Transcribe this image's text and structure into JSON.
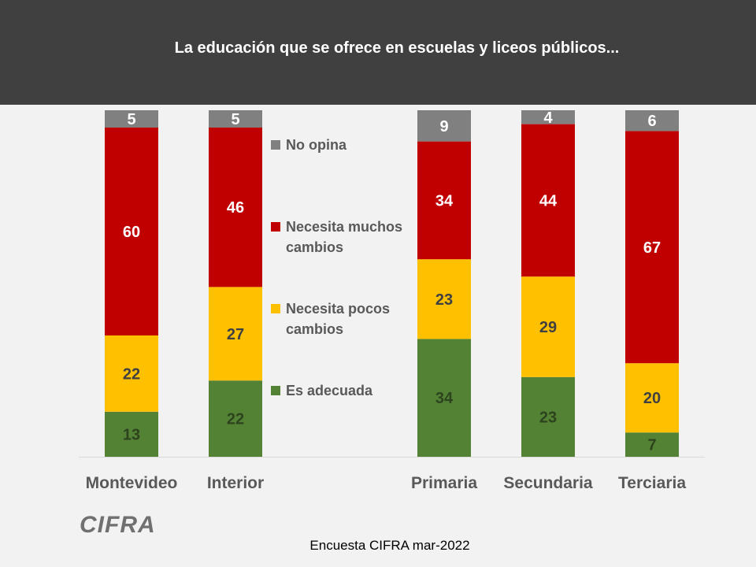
{
  "header": {
    "title": "La educación que se ofrece en escuelas y liceos públicos..."
  },
  "chart_data": {
    "type": "bar",
    "stacked": true,
    "title": "La educación que se ofrece en escuelas y liceos públicos...",
    "categories": [
      "Montevideo",
      "Interior",
      "Primaria",
      "Secundaria",
      "Terciaria"
    ],
    "series": [
      {
        "name": "Es adecuada",
        "color": "#548235",
        "values": [
          13,
          22,
          34,
          23,
          7
        ]
      },
      {
        "name": "Necesita pocos cambios",
        "color": "#ffc000",
        "values": [
          22,
          27,
          23,
          29,
          20
        ]
      },
      {
        "name": "Necesita muchos cambios",
        "color": "#c00000",
        "values": [
          60,
          46,
          34,
          44,
          67
        ]
      },
      {
        "name": "No opina",
        "color": "#808080",
        "values": [
          5,
          5,
          9,
          4,
          6
        ]
      }
    ],
    "legend": [
      {
        "lines": [
          "No opina"
        ],
        "color": "#808080"
      },
      {
        "lines": [
          "Necesita muchos",
          "cambios"
        ],
        "color": "#c00000"
      },
      {
        "lines": [
          "Necesita pocos",
          "cambios"
        ],
        "color": "#ffc000"
      },
      {
        "lines": [
          "Es adecuada"
        ],
        "color": "#548235"
      }
    ],
    "ylim": [
      0,
      100
    ],
    "xlabel": "",
    "ylabel": "",
    "legend_position": "center-left"
  },
  "logo": {
    "text": "CIFRA"
  },
  "footer": {
    "source": "Encuesta CIFRA mar-2022"
  }
}
